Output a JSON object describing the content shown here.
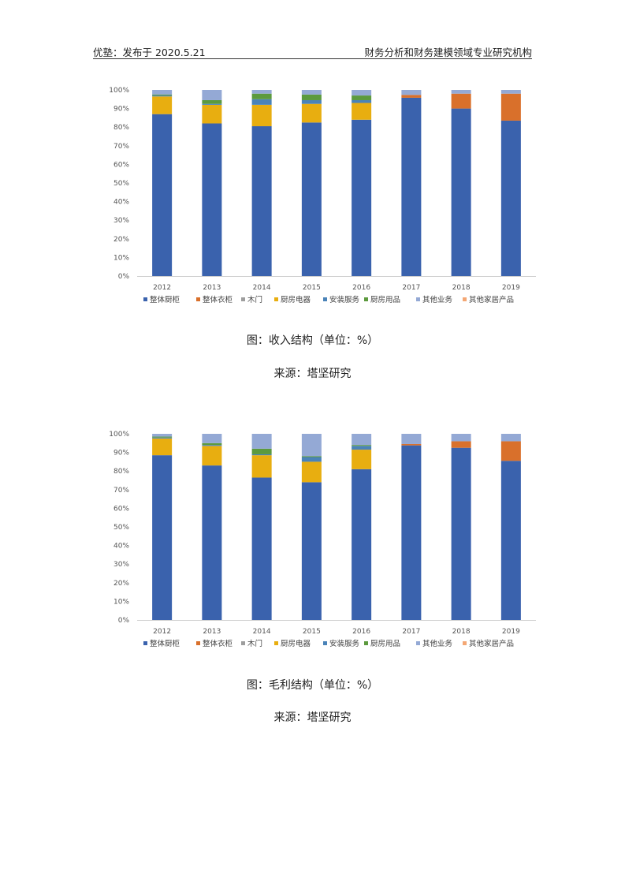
{
  "header": {
    "left": "优塾：发布于 2020.5.21",
    "right": "财务分析和财务建模领域专业研究机构"
  },
  "charts": [
    {
      "caption": "图：收入结构（单位：%）",
      "source": "来源：塔坚研究"
    },
    {
      "caption": "图：毛利结构（单位：%）",
      "source": "来源：塔坚研究"
    }
  ],
  "chart_data": [
    {
      "type": "bar",
      "stacked": true,
      "categories": [
        "2012",
        "2013",
        "2014",
        "2015",
        "2016",
        "2017",
        "2018",
        "2019"
      ],
      "y_ticks": [
        "0%",
        "10%",
        "20%",
        "30%",
        "40%",
        "50%",
        "60%",
        "70%",
        "80%",
        "90%",
        "100%"
      ],
      "ylim": [
        0,
        100
      ],
      "grid": false,
      "legend_position": "bottom",
      "series": [
        {
          "name": "整体厨柜",
          "color": "#3A62AD",
          "values": [
            87.0,
            82.0,
            80.5,
            82.5,
            84.0,
            95.8,
            90.0,
            83.5
          ]
        },
        {
          "name": "整体衣柜",
          "color": "#D9702B",
          "values": [
            0,
            0,
            0,
            0,
            0,
            1.5,
            8.0,
            14.5
          ]
        },
        {
          "name": "木门",
          "color": "#9E9E9E",
          "values": [
            0,
            0,
            0,
            0,
            0,
            0,
            0,
            0
          ]
        },
        {
          "name": "厨房电器",
          "color": "#E8AE10",
          "values": [
            9.5,
            10.0,
            11.5,
            10.0,
            9.0,
            0,
            0,
            0
          ]
        },
        {
          "name": "安装服务",
          "color": "#4A83B8",
          "values": [
            0.5,
            0.5,
            3.0,
            2.0,
            1.5,
            0,
            0,
            0
          ]
        },
        {
          "name": "厨房用品",
          "color": "#5C9A3E",
          "values": [
            0.5,
            2.0,
            3.0,
            3.0,
            2.5,
            0,
            0,
            0
          ]
        },
        {
          "name": "其他业务",
          "color": "#94A9D5",
          "values": [
            2.5,
            5.5,
            2.0,
            2.5,
            3.0,
            2.7,
            2.0,
            2.0
          ]
        },
        {
          "name": "其他家居产品",
          "color": "#F4A774",
          "values": [
            0,
            0,
            0,
            0,
            0,
            0,
            0,
            0
          ]
        }
      ]
    },
    {
      "type": "bar",
      "stacked": true,
      "categories": [
        "2012",
        "2013",
        "2014",
        "2015",
        "2016",
        "2017",
        "2018",
        "2019"
      ],
      "y_ticks": [
        "0%",
        "10%",
        "20%",
        "30%",
        "40%",
        "50%",
        "60%",
        "70%",
        "80%",
        "90%",
        "100%"
      ],
      "ylim": [
        0,
        100
      ],
      "grid": false,
      "legend_position": "bottom",
      "series": [
        {
          "name": "整体厨柜",
          "color": "#3A62AD",
          "values": [
            88.5,
            83.0,
            76.5,
            74.0,
            81.0,
            93.8,
            92.5,
            85.5
          ]
        },
        {
          "name": "整体衣柜",
          "color": "#D9702B",
          "values": [
            0,
            0,
            0,
            0,
            0,
            0.7,
            3.5,
            10.5
          ]
        },
        {
          "name": "木门",
          "color": "#9E9E9E",
          "values": [
            0,
            0,
            0,
            0,
            0,
            0,
            0,
            0
          ]
        },
        {
          "name": "厨房电器",
          "color": "#E8AE10",
          "values": [
            9.0,
            10.5,
            12.0,
            11.0,
            10.5,
            0,
            0,
            0
          ]
        },
        {
          "name": "安装服务",
          "color": "#4A83B8",
          "values": [
            0.5,
            0.5,
            0.5,
            2.5,
            2.0,
            0,
            0,
            0
          ]
        },
        {
          "name": "厨房用品",
          "color": "#5C9A3E",
          "values": [
            0.5,
            1.0,
            3.0,
            0.5,
            0.5,
            0,
            0,
            0
          ]
        },
        {
          "name": "其他业务",
          "color": "#94A9D5",
          "values": [
            1.5,
            5.0,
            8.0,
            12.0,
            6.0,
            5.5,
            4.0,
            4.0
          ]
        },
        {
          "name": "其他家居产品",
          "color": "#F4A774",
          "values": [
            0,
            0,
            0,
            0,
            0,
            0,
            0,
            0
          ]
        }
      ]
    }
  ]
}
